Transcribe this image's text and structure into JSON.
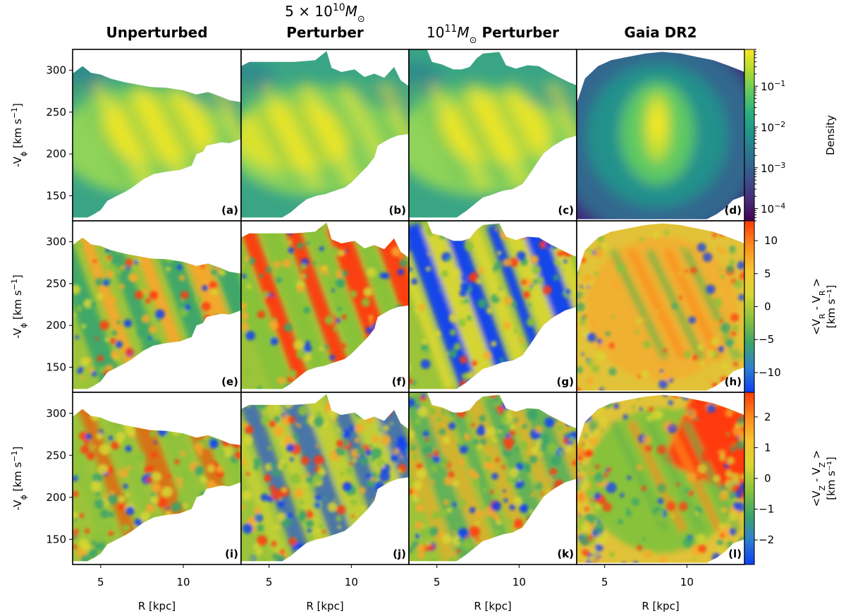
{
  "chart_data": {
    "type": "heatmap",
    "layout": "3 rows x 4 columns, shared axes",
    "column_titles": [
      {
        "main": "Unperturbed",
        "sup": ""
      },
      {
        "pre": "5 × 10",
        "exp": "10",
        "unit": "M",
        "sub": "⊙",
        "main": "Perturber"
      },
      {
        "pre": "10",
        "exp": "11",
        "unit": "M",
        "sub": "⊙",
        "main": "Perturber"
      },
      {
        "main": "Gaia DR2"
      }
    ],
    "xlabel": "R [kpc]",
    "ylabel": "-Vϕ [km s⁻¹]",
    "ylabel_parts": {
      "pre": "-V",
      "sub": "ϕ",
      "mid": " [km s",
      "sup": "−1",
      "post": "]"
    },
    "x_range": [
      3.3,
      13.5
    ],
    "y_range": [
      120,
      325
    ],
    "x_ticks": [
      5,
      10
    ],
    "y_ticks": [
      150,
      200,
      250,
      300
    ],
    "panel_labels": [
      "(a)",
      "(b)",
      "(c)",
      "(d)",
      "(e)",
      "(f)",
      "(g)",
      "(h)",
      "(i)",
      "(j)",
      "(k)",
      "(l)"
    ],
    "rows": [
      {
        "quantity": "Density",
        "colormap": "viridis",
        "scale": "log",
        "color_range": [
          5e-05,
          0.8
        ],
        "colorbar_label": "Density",
        "colorbar_ticks": [
          {
            "base": "10",
            "exp": "−1",
            "value": 0.1
          },
          {
            "base": "10",
            "exp": "−2",
            "value": 0.01
          },
          {
            "base": "10",
            "exp": "−3",
            "value": 0.001
          },
          {
            "base": "10",
            "exp": "−4",
            "value": 0.0001
          }
        ]
      },
      {
        "quantity": "<VR - VR_mean>",
        "colormap": "blue-green-yellow-red",
        "scale": "linear",
        "color_range": [
          -13,
          13
        ],
        "colorbar_label_lines": [
          "<V_R - Ṽ_R >",
          "[km s⁻¹]"
        ],
        "colorbar_label": {
          "pre": "<V",
          "sub1": "R",
          "mid": " - ",
          "tilde": "V",
          "sub2": "R",
          "post": " >",
          "line2": "[km s⁻¹]"
        },
        "colorbar_ticks": [
          -10,
          -5,
          0,
          5,
          10
        ]
      },
      {
        "quantity": "<VZ - VZ_mean>",
        "colormap": "blue-green-yellow-red",
        "scale": "linear",
        "color_range": [
          -2.8,
          2.8
        ],
        "colorbar_label": {
          "pre": "<V",
          "sub1": "Z",
          "mid": " - ",
          "tilde": "V",
          "sub2": "Z",
          "post": " >",
          "line2": "[km s⁻¹]"
        },
        "colorbar_ticks": [
          -2,
          -1,
          0,
          1,
          2
        ]
      }
    ]
  }
}
